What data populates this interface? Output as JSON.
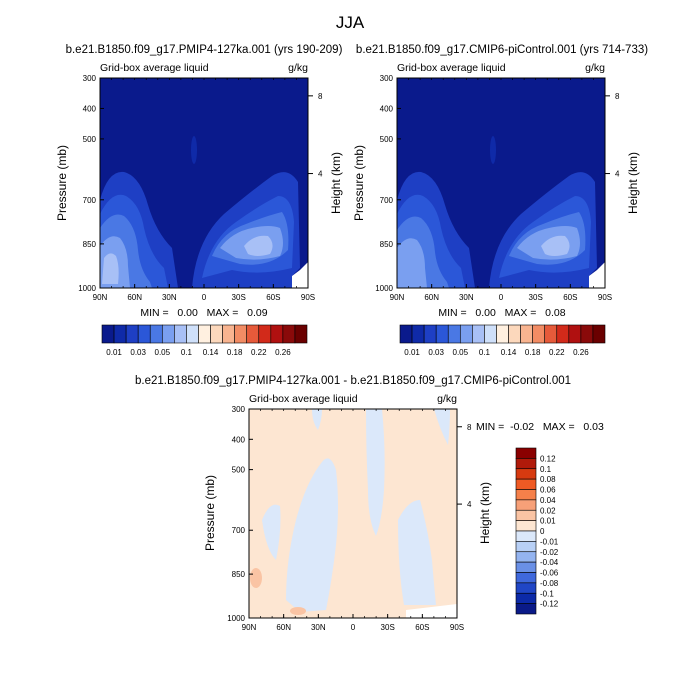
{
  "figure": {
    "title": "JJA"
  },
  "chart_data": [
    {
      "type": "contour",
      "panel": "top-left",
      "title": "b.e21.B1850.f09_g17.PMIP4-127ka.001 (yrs 190-209)",
      "left_label": "Grid-box average liquid",
      "right_label": "g/kg",
      "xlabel": "",
      "ylabel": "Pressure (mb)",
      "y2label": "Height (km)",
      "x_ticks": [
        "90N",
        "60N",
        "30N",
        "0",
        "30S",
        "60S",
        "90S"
      ],
      "y_ticks": [
        "300",
        "400",
        "500",
        "700",
        "850",
        "1000"
      ],
      "y2_ticks": [
        "8",
        "4"
      ],
      "min_max": "MIN =   0.00   MAX =   0.09",
      "colorbar": {
        "orientation": "horizontal",
        "labels": [
          "0.01",
          "0.03",
          "0.05",
          "0.1",
          "0.14",
          "0.18",
          "0.22",
          "0.26"
        ],
        "levels": [
          0.01,
          0.02,
          0.03,
          0.04,
          0.05,
          0.06,
          0.08,
          0.1,
          0.12,
          0.14,
          0.16,
          0.18,
          0.2,
          0.22,
          0.24,
          0.26
        ],
        "colors": [
          "#0a1a8c",
          "#0f2aa8",
          "#1e3fc4",
          "#2b57d8",
          "#4a78e4",
          "#7a9ff0",
          "#a8c0f6",
          "#cfe0fa",
          "#fff0e0",
          "#fcd8bc",
          "#f8b490",
          "#f28c64",
          "#e65a3a",
          "#d22a1a",
          "#b01010",
          "#8a0a0a",
          "#6a0000"
        ]
      }
    },
    {
      "type": "contour",
      "panel": "top-right",
      "title": "b.e21.B1850.f09_g17.CMIP6-piControl.001 (yrs 714-733)",
      "left_label": "Grid-box average liquid",
      "right_label": "g/kg",
      "xlabel": "",
      "ylabel": "Pressure (mb)",
      "y2label": "Height (km)",
      "x_ticks": [
        "90N",
        "60N",
        "30N",
        "0",
        "30S",
        "60S",
        "90S"
      ],
      "y_ticks": [
        "300",
        "400",
        "500",
        "700",
        "850",
        "1000"
      ],
      "y2_ticks": [
        "8",
        "4"
      ],
      "min_max": "MIN =   0.00   MAX =   0.08",
      "colorbar": {
        "orientation": "horizontal",
        "labels": [
          "0.01",
          "0.03",
          "0.05",
          "0.1",
          "0.14",
          "0.18",
          "0.22",
          "0.26"
        ],
        "levels": [
          0.01,
          0.02,
          0.03,
          0.04,
          0.05,
          0.06,
          0.08,
          0.1,
          0.12,
          0.14,
          0.16,
          0.18,
          0.2,
          0.22,
          0.24,
          0.26
        ],
        "colors": [
          "#0a1a8c",
          "#0f2aa8",
          "#1e3fc4",
          "#2b57d8",
          "#4a78e4",
          "#7a9ff0",
          "#a8c0f6",
          "#cfe0fa",
          "#fff0e0",
          "#fcd8bc",
          "#f8b490",
          "#f28c64",
          "#e65a3a",
          "#d22a1a",
          "#b01010",
          "#8a0a0a",
          "#6a0000"
        ]
      }
    },
    {
      "type": "contour",
      "panel": "bottom",
      "title": "b.e21.B1850.f09_g17.PMIP4-127ka.001 - b.e21.B1850.f09_g17.CMIP6-piControl.001",
      "left_label": "Grid-box average liquid",
      "right_label": "g/kg",
      "xlabel": "",
      "ylabel": "Pressure (mb)",
      "y2label": "Height (km)",
      "x_ticks": [
        "90N",
        "60N",
        "30N",
        "0",
        "30S",
        "60S",
        "90S"
      ],
      "y_ticks": [
        "300",
        "400",
        "500",
        "700",
        "850",
        "1000"
      ],
      "y2_ticks": [
        "8",
        "4"
      ],
      "min_max": "MIN =  -0.02   MAX =   0.03",
      "colorbar": {
        "orientation": "vertical",
        "labels": [
          "0.12",
          "0.1",
          "0.08",
          "0.06",
          "0.04",
          "0.02",
          "0.01",
          "0",
          "-0.01",
          "-0.02",
          "-0.04",
          "-0.06",
          "-0.08",
          "-0.1",
          "-0.12"
        ],
        "colors": [
          "#8a0000",
          "#b01a0a",
          "#d63a10",
          "#ef5a24",
          "#f5804a",
          "#f7a078",
          "#fac4a4",
          "#fde6d2",
          "#dbe8fa",
          "#b8d0f6",
          "#94b4f0",
          "#6a90e6",
          "#3f68dc",
          "#2046c6",
          "#0c2aa8",
          "#0a1a88"
        ]
      }
    }
  ]
}
